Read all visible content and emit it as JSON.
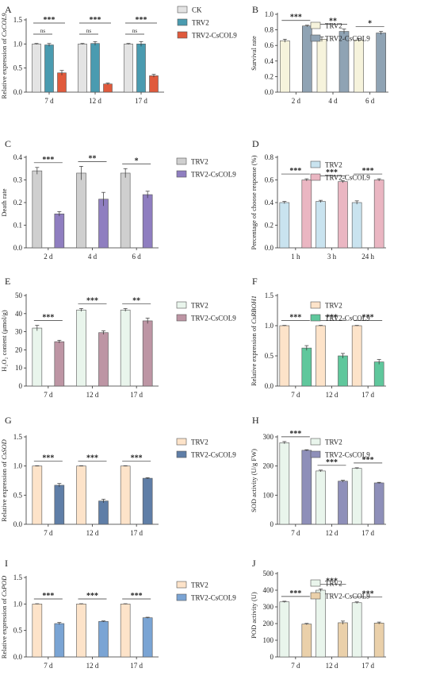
{
  "figure": {
    "colors": {
      "ck": "#e3e3e3",
      "trv2_a": "#4a9bb0",
      "trv2_csCOL9_a": "#e05a3c",
      "trv2_cream": "#f6f3dc",
      "trv2_csCOL9_b": "#8fa3b4",
      "trv2_gray": "#cfcfcf",
      "trv2_csCOL9_purple": "#8f7ec0",
      "trv2_lightblue": "#c9e3ef",
      "trv2_csCOL9_pink": "#eab6c2",
      "trv2_mint": "#e9f5ec",
      "trv2_csCOL9_mauve": "#bd95a4",
      "trv2_peach": "#fde3c9",
      "trv2_csCOL9_green": "#5fc79c",
      "trv2_csCOL9_slate": "#5f7ea7",
      "trv2_csCOL9_lav": "#8e8fb9",
      "trv2_csCOL9_blue": "#7aa4d4",
      "trv2_csCOL9_tan": "#ead0aa"
    }
  },
  "chart_data": [
    {
      "panel": "A",
      "type": "bar",
      "ylabel_pre": "Relative expression of ",
      "ylabel_it": "CsCOL9",
      "categories": [
        "7 d",
        "12 d",
        "17 d"
      ],
      "yticks": [
        "0.0",
        "0.5",
        "1.0",
        "1.5"
      ],
      "ylim": [
        0,
        1.5
      ],
      "legend": [
        "CK",
        "TRV2",
        "TRV2-CsCOL9"
      ],
      "series": [
        {
          "name": "CK",
          "values": [
            1.0,
            1.0,
            1.0
          ],
          "err": [
            0.01,
            0.01,
            0.01
          ],
          "color": "#e3e3e3"
        },
        {
          "name": "TRV2",
          "values": [
            0.98,
            1.01,
            1.0
          ],
          "err": [
            0.03,
            0.04,
            0.05
          ],
          "color": "#4a9bb0"
        },
        {
          "name": "TRV2-CsCOL9",
          "values": [
            0.4,
            0.17,
            0.34
          ],
          "err": [
            0.05,
            0.02,
            0.03
          ],
          "color": "#e05a3c"
        }
      ],
      "brackets": [
        {
          "cat": 0,
          "from": 0,
          "to": 2,
          "text": "***"
        },
        {
          "cat": 0,
          "from": 0,
          "to": 1,
          "text": "ns"
        },
        {
          "cat": 1,
          "from": 0,
          "to": 2,
          "text": "***"
        },
        {
          "cat": 1,
          "from": 0,
          "to": 1,
          "text": "ns"
        },
        {
          "cat": 2,
          "from": 0,
          "to": 2,
          "text": "***"
        },
        {
          "cat": 2,
          "from": 0,
          "to": 1,
          "text": "ns"
        }
      ]
    },
    {
      "panel": "B",
      "type": "bar",
      "ylabel_pre": "Survival rate",
      "ylabel_it": "",
      "categories": [
        "2 d",
        "4 d",
        "6 d"
      ],
      "yticks": [
        "0.0",
        "0.2",
        "0.4",
        "0.6",
        "0.8",
        "1.0"
      ],
      "ylim": [
        0,
        1.0
      ],
      "legend": [
        "TRV2",
        "TRV2-CsCOL9"
      ],
      "series": [
        {
          "name": "TRV2",
          "values": [
            0.66,
            0.68,
            0.67
          ],
          "err": [
            0.02,
            0.03,
            0.02
          ],
          "color": "#f6f3dc"
        },
        {
          "name": "TRV2-CsCOL9",
          "values": [
            0.85,
            0.78,
            0.76
          ],
          "err": [
            0.01,
            0.03,
            0.02
          ],
          "color": "#8fa3b4"
        }
      ],
      "brackets": [
        {
          "cat": 0,
          "text": "***"
        },
        {
          "cat": 1,
          "text": "**"
        },
        {
          "cat": 2,
          "text": "*"
        }
      ]
    },
    {
      "panel": "C",
      "type": "bar",
      "ylabel_pre": "Death rate",
      "ylabel_it": "",
      "categories": [
        "2 d",
        "4 d",
        "6 d"
      ],
      "yticks": [
        "0.0",
        "0.1",
        "0.2",
        "0.3",
        "0.4"
      ],
      "ylim": [
        0,
        0.4
      ],
      "legend": [
        "TRV2",
        "TRV2-CsCOL9"
      ],
      "series": [
        {
          "name": "TRV2",
          "values": [
            0.34,
            0.33,
            0.33
          ],
          "err": [
            0.015,
            0.03,
            0.02
          ],
          "color": "#cfcfcf"
        },
        {
          "name": "TRV2-CsCOL9",
          "values": [
            0.15,
            0.215,
            0.235
          ],
          "err": [
            0.01,
            0.03,
            0.015
          ],
          "color": "#8f7ec0"
        }
      ],
      "brackets": [
        {
          "cat": 0,
          "text": "***"
        },
        {
          "cat": 1,
          "text": "**"
        },
        {
          "cat": 2,
          "text": "*"
        }
      ]
    },
    {
      "panel": "D",
      "type": "bar",
      "ylabel_pre": "Percentage of choose response (%)",
      "ylabel_it": "",
      "categories": [
        "1 h",
        "3 h",
        "24 h"
      ],
      "yticks": [
        "0.0",
        "0.2",
        "0.4",
        "0.6",
        "0.8"
      ],
      "ylim": [
        0,
        0.8
      ],
      "legend": [
        "TRV2",
        "TRV2-CsCOL9"
      ],
      "series": [
        {
          "name": "TRV2",
          "values": [
            0.4,
            0.41,
            0.4
          ],
          "err": [
            0.01,
            0.01,
            0.015
          ],
          "color": "#c9e3ef"
        },
        {
          "name": "TRV2-CsCOL9",
          "values": [
            0.6,
            0.585,
            0.6
          ],
          "err": [
            0.01,
            0.01,
            0.01
          ],
          "color": "#eab6c2"
        }
      ],
      "brackets": [
        {
          "cat": 0,
          "text": "***"
        },
        {
          "cat": 1,
          "text": "***"
        },
        {
          "cat": 2,
          "text": "***"
        }
      ]
    },
    {
      "panel": "E",
      "type": "bar",
      "ylabel_pre": "H₂O₂ content (μmol/g)",
      "ylabel_it": "",
      "categories": [
        "7 d",
        "12 d",
        "17 d"
      ],
      "yticks": [
        "0",
        "10",
        "20",
        "30",
        "40",
        "50"
      ],
      "ylim": [
        0,
        50
      ],
      "legend": [
        "TRV2",
        "TRV2-CsCOL9"
      ],
      "series": [
        {
          "name": "TRV2",
          "values": [
            32,
            42,
            42
          ],
          "err": [
            1.5,
            0.8,
            0.8
          ],
          "color": "#e9f5ec"
        },
        {
          "name": "TRV2-CsCOL9",
          "values": [
            24.5,
            29.5,
            36
          ],
          "err": [
            0.8,
            1.0,
            1.5
          ],
          "color": "#bd95a4"
        }
      ],
      "brackets": [
        {
          "cat": 0,
          "text": "***"
        },
        {
          "cat": 1,
          "text": "***"
        },
        {
          "cat": 2,
          "text": "**"
        }
      ]
    },
    {
      "panel": "F",
      "type": "bar",
      "ylabel_pre": "Relative expression of ",
      "ylabel_it": "CsRBOH1",
      "categories": [
        "7 d",
        "12 d",
        "17 d"
      ],
      "yticks": [
        "0.0",
        "0.5",
        "1.0",
        "1.5"
      ],
      "ylim": [
        0,
        1.5
      ],
      "legend": [
        "TRV2",
        "TRV2-CsCOL9"
      ],
      "series": [
        {
          "name": "TRV2",
          "values": [
            1.0,
            1.0,
            1.0
          ],
          "err": [
            0.005,
            0.005,
            0.005
          ],
          "color": "#fde3c9"
        },
        {
          "name": "TRV2-CsCOL9",
          "values": [
            0.63,
            0.5,
            0.4
          ],
          "err": [
            0.04,
            0.04,
            0.04
          ],
          "color": "#5fc79c"
        }
      ],
      "brackets": [
        {
          "cat": 0,
          "text": "***"
        },
        {
          "cat": 1,
          "text": "***"
        },
        {
          "cat": 2,
          "text": "***"
        }
      ]
    },
    {
      "panel": "G",
      "type": "bar",
      "ylabel_pre": "Relative expression of ",
      "ylabel_it": "CsSOD",
      "categories": [
        "7 d",
        "12 d",
        "17 d"
      ],
      "yticks": [
        "0.0",
        "0.5",
        "1.0",
        "1.5"
      ],
      "ylim": [
        0,
        1.5
      ],
      "legend": [
        "TRV2",
        "TRV2-CsCOL9"
      ],
      "series": [
        {
          "name": "TRV2",
          "values": [
            1.0,
            1.0,
            1.0
          ],
          "err": [
            0.005,
            0.005,
            0.005
          ],
          "color": "#fde3c9"
        },
        {
          "name": "TRV2-CsCOL9",
          "values": [
            0.67,
            0.4,
            0.79
          ],
          "err": [
            0.03,
            0.03,
            0.01
          ],
          "color": "#5f7ea7"
        }
      ],
      "brackets": [
        {
          "cat": 0,
          "text": "***"
        },
        {
          "cat": 1,
          "text": "***"
        },
        {
          "cat": 2,
          "text": "***"
        }
      ]
    },
    {
      "panel": "H",
      "type": "bar",
      "ylabel_pre": "SOD activity (U/g FW)",
      "ylabel_it": "",
      "categories": [
        "7 d",
        "12 d",
        "17 d"
      ],
      "yticks": [
        "0",
        "100",
        "200",
        "300"
      ],
      "ylim": [
        0,
        300
      ],
      "legend": [
        "TRV2",
        "TRV2-CsCOL9"
      ],
      "series": [
        {
          "name": "TRV2",
          "values": [
            280,
            183,
            192
          ],
          "err": [
            4,
            3,
            2
          ],
          "color": "#e9f5ec"
        },
        {
          "name": "TRV2-CsCOL9",
          "values": [
            254,
            148,
            142
          ],
          "err": [
            2,
            3,
            2
          ],
          "color": "#8e8fb9"
        }
      ],
      "brackets": [
        {
          "cat": 0,
          "text": "***"
        },
        {
          "cat": 1,
          "text": "***"
        },
        {
          "cat": 2,
          "text": "***"
        }
      ]
    },
    {
      "panel": "I",
      "type": "bar",
      "ylabel_pre": "Relative expression of ",
      "ylabel_it": "CsPOD",
      "categories": [
        "7 d",
        "12 d",
        "17 d"
      ],
      "yticks": [
        "0.0",
        "0.5",
        "1.0",
        "1.5"
      ],
      "ylim": [
        0,
        1.5
      ],
      "legend": [
        "TRV2",
        "TRV2-CsCOL9"
      ],
      "series": [
        {
          "name": "TRV2",
          "values": [
            1.0,
            1.0,
            1.0
          ],
          "err": [
            0.005,
            0.005,
            0.005
          ],
          "color": "#fde3c9"
        },
        {
          "name": "TRV2-CsCOL9",
          "values": [
            0.63,
            0.67,
            0.74
          ],
          "err": [
            0.02,
            0.01,
            0.01
          ],
          "color": "#7aa4d4"
        }
      ],
      "brackets": [
        {
          "cat": 0,
          "text": "***"
        },
        {
          "cat": 1,
          "text": "***"
        },
        {
          "cat": 2,
          "text": "***"
        }
      ]
    },
    {
      "panel": "J",
      "type": "bar",
      "ylabel_pre": "POD activity (U)",
      "ylabel_it": "",
      "categories": [
        "7 d",
        "12 d",
        "17 d"
      ],
      "yticks": [
        "0",
        "100",
        "200",
        "300",
        "400",
        "500"
      ],
      "ylim": [
        0,
        500
      ],
      "legend": [
        "TRV2",
        "TRV2-CsCOL9"
      ],
      "series": [
        {
          "name": "TRV2",
          "values": [
            330,
            400,
            325
          ],
          "err": [
            4,
            8,
            5
          ],
          "color": "#e9f5ec"
        },
        {
          "name": "TRV2-CsCOL9",
          "values": [
            197,
            205,
            203
          ],
          "err": [
            4,
            10,
            6
          ],
          "color": "#ead0aa"
        }
      ],
      "brackets": [
        {
          "cat": 0,
          "text": "***"
        },
        {
          "cat": 1,
          "text": "***"
        },
        {
          "cat": 2,
          "text": "***"
        }
      ]
    }
  ]
}
